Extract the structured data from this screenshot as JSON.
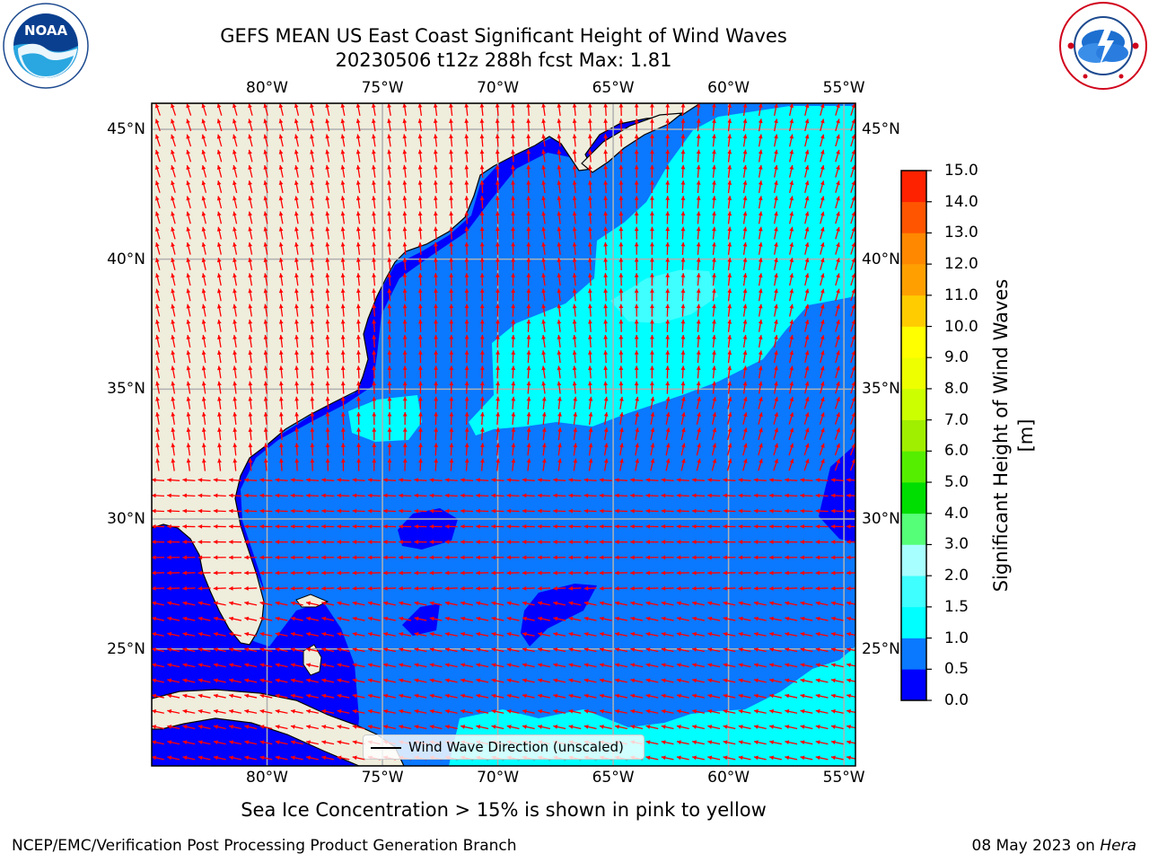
{
  "title": {
    "line1": "GEFS MEAN US East Coast Significant Height of Wind Waves",
    "line2": "20230506 t12z 288h fcst   Max: 1.81"
  },
  "logos": {
    "left": {
      "name": "noaa-logo",
      "text": "NOAA",
      "ring_text": "NATIONAL OCEANIC AND ATMOSPHERIC ADMINISTRATION · U.S. DEPARTMENT OF COMMERCE"
    },
    "right": {
      "name": "nws-logo",
      "ring_text": "NATIONAL WEATHER SERVICE"
    }
  },
  "map": {
    "projection": "lat-lon",
    "lon_range": [
      -85,
      -54.5
    ],
    "lat_range": [
      20.5,
      46
    ],
    "lon_labels": [
      "80°W",
      "75°W",
      "70°W",
      "65°W",
      "60°W",
      "55°W"
    ],
    "lat_labels": [
      "45°N",
      "40°N",
      "35°N",
      "30°N",
      "25°N"
    ],
    "colors": {
      "land": "#efeddc",
      "coast": "#000000",
      "grid": "#b0b0b0",
      "arrow": "#ff0000"
    },
    "legend_text": "Wind Wave Direction (unscaled)"
  },
  "colorbar": {
    "title": "Significant Height of Wind Waves [m]",
    "ticks": [
      "0.0",
      "0.5",
      "1.0",
      "1.5",
      "2.0",
      "3.0",
      "4.0",
      "5.0",
      "6.0",
      "7.0",
      "8.0",
      "9.0",
      "10.0",
      "11.0",
      "12.0",
      "13.0",
      "14.0",
      "15.0"
    ],
    "colors": [
      "#0000ff",
      "#0a78ff",
      "#00ffff",
      "#3fffff",
      "#a8ffff",
      "#55ff77",
      "#00dd00",
      "#55ee00",
      "#a0ee00",
      "#ccff00",
      "#eeff00",
      "#ffff00",
      "#ffcc00",
      "#ffa000",
      "#ff8800",
      "#ff5500",
      "#ff2200"
    ]
  },
  "footer": {
    "sea_ice_note": "Sea Ice Concentration > 15% is shown in pink to yellow",
    "credit_left": "NCEP/EMC/Verification Post Processing Product Generation Branch",
    "credit_date": "08 May 2023 on ",
    "credit_host": "Hera"
  }
}
